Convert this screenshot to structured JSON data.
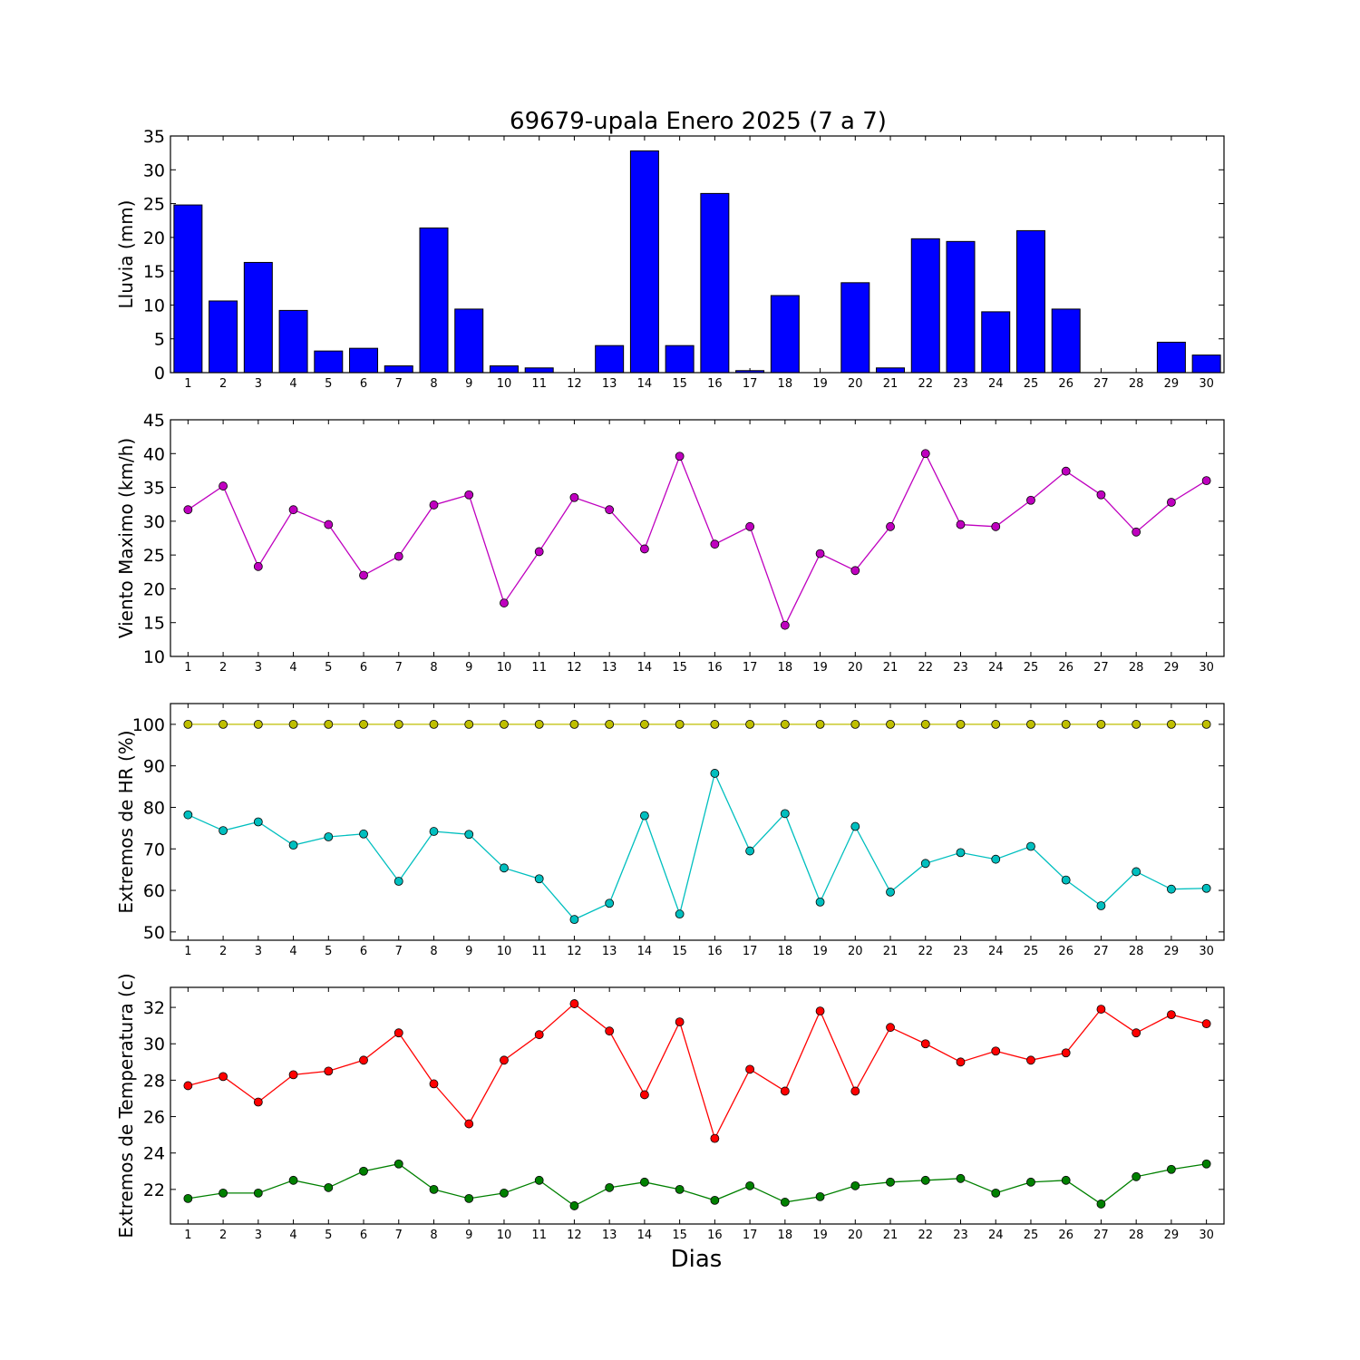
{
  "title": "69679-upala Enero 2025  (7 a 7)",
  "xlabel": "Dias",
  "chart_data": [
    {
      "type": "bar",
      "ylabel": "Lluvia (mm)",
      "ylim": [
        0,
        35
      ],
      "yticks": [
        0,
        5,
        10,
        15,
        20,
        25,
        30,
        35
      ],
      "categories": [
        "1",
        "2",
        "3",
        "4",
        "5",
        "6",
        "7",
        "8",
        "9",
        "10",
        "11",
        "12",
        "13",
        "14",
        "15",
        "16",
        "17",
        "18",
        "19",
        "20",
        "21",
        "22",
        "23",
        "24",
        "25",
        "26",
        "27",
        "28",
        "29",
        "30"
      ],
      "series": [
        {
          "color": "#0000ff",
          "values": [
            24.8,
            10.6,
            16.3,
            9.2,
            3.2,
            3.6,
            1.0,
            21.4,
            9.4,
            1.0,
            0.7,
            0.0,
            4.0,
            32.8,
            4.0,
            26.5,
            0.3,
            11.4,
            0.0,
            13.3,
            0.7,
            19.8,
            19.4,
            9.0,
            21.0,
            9.4,
            0.0,
            0.0,
            4.5,
            2.6
          ]
        }
      ]
    },
    {
      "type": "line",
      "ylabel": "Viento Maximo (km/h)",
      "ylim": [
        10,
        45
      ],
      "yticks": [
        10,
        15,
        20,
        25,
        30,
        35,
        40,
        45
      ],
      "categories": [
        "1",
        "2",
        "3",
        "4",
        "5",
        "6",
        "7",
        "8",
        "9",
        "10",
        "11",
        "12",
        "13",
        "14",
        "15",
        "16",
        "17",
        "18",
        "19",
        "20",
        "21",
        "22",
        "23",
        "24",
        "25",
        "26",
        "27",
        "28",
        "29",
        "30"
      ],
      "series": [
        {
          "color": "#bf00bf",
          "values": [
            31.7,
            35.2,
            23.3,
            31.7,
            29.5,
            22.0,
            24.8,
            32.4,
            33.9,
            17.9,
            25.5,
            33.5,
            31.7,
            25.9,
            39.6,
            26.6,
            29.2,
            14.6,
            25.2,
            22.7,
            29.2,
            40.0,
            29.5,
            29.2,
            33.1,
            37.4,
            33.9,
            28.4,
            32.8,
            36.0
          ]
        }
      ]
    },
    {
      "type": "line",
      "ylabel": "Extremos de HR (%)",
      "ylim": [
        48,
        105
      ],
      "yticks": [
        50,
        60,
        70,
        80,
        90,
        100
      ],
      "categories": [
        "1",
        "2",
        "3",
        "4",
        "5",
        "6",
        "7",
        "8",
        "9",
        "10",
        "11",
        "12",
        "13",
        "14",
        "15",
        "16",
        "17",
        "18",
        "19",
        "20",
        "21",
        "22",
        "23",
        "24",
        "25",
        "26",
        "27",
        "28",
        "29",
        "30"
      ],
      "series": [
        {
          "color": "#bfbf00",
          "values": [
            100,
            100,
            100,
            100,
            100,
            100,
            100,
            100,
            100,
            100,
            100,
            100,
            100,
            100,
            100,
            100,
            100,
            100,
            100,
            100,
            100,
            100,
            100,
            100,
            100,
            100,
            100,
            100,
            100,
            100
          ]
        },
        {
          "color": "#00bfbf",
          "values": [
            78.2,
            74.4,
            76.5,
            70.9,
            72.9,
            73.6,
            62.2,
            74.2,
            73.5,
            65.4,
            62.8,
            53.0,
            56.9,
            78.0,
            54.3,
            88.2,
            69.5,
            78.5,
            57.2,
            75.4,
            59.6,
            66.5,
            69.1,
            67.5,
            70.6,
            62.5,
            56.3,
            64.5,
            60.3,
            60.5
          ]
        }
      ]
    },
    {
      "type": "line",
      "ylabel": "Extremos de Temperatura (c)",
      "ylim": [
        20.1,
        33.1
      ],
      "yticks": [
        22,
        24,
        26,
        28,
        30,
        32
      ],
      "categories": [
        "1",
        "2",
        "3",
        "4",
        "5",
        "6",
        "7",
        "8",
        "9",
        "10",
        "11",
        "12",
        "13",
        "14",
        "15",
        "16",
        "17",
        "18",
        "19",
        "20",
        "21",
        "22",
        "23",
        "24",
        "25",
        "26",
        "27",
        "28",
        "29",
        "30"
      ],
      "series": [
        {
          "color": "#ff0000",
          "values": [
            27.7,
            28.2,
            26.8,
            28.3,
            28.5,
            29.1,
            30.6,
            27.8,
            25.6,
            29.1,
            30.5,
            32.2,
            30.7,
            27.2,
            31.2,
            24.8,
            28.6,
            27.4,
            31.8,
            27.4,
            30.9,
            30.0,
            29.0,
            29.6,
            29.1,
            29.5,
            31.9,
            30.6,
            31.6,
            31.1
          ]
        },
        {
          "color": "#008000",
          "values": [
            21.5,
            21.8,
            21.8,
            22.5,
            22.1,
            23.0,
            23.4,
            22.0,
            21.5,
            21.8,
            22.5,
            21.1,
            22.1,
            22.4,
            22.0,
            21.4,
            22.2,
            21.3,
            21.6,
            22.2,
            22.4,
            22.5,
            22.6,
            21.8,
            22.4,
            22.5,
            21.2,
            22.7,
            23.1,
            23.4
          ]
        }
      ]
    }
  ]
}
